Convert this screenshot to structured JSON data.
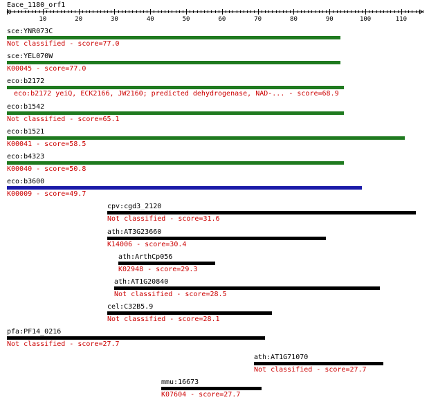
{
  "query": {
    "name": "Eace_1180_orf1",
    "axis_min": 0,
    "axis_max": 116,
    "tick_labels": [
      "10",
      "20",
      "30",
      "40",
      "50",
      "60",
      "70",
      "80",
      "90",
      "100",
      "110"
    ]
  },
  "colors": {
    "green": "#1f7a1f",
    "blue": "#1a1aa8",
    "black": "#000000",
    "red": "#cc0000"
  },
  "hits": [
    {
      "name": "sce:YNR073C",
      "start": 0,
      "end": 93,
      "color": "green",
      "sub": "Not classified - score=77.0",
      "sub_color": "red"
    },
    {
      "name": "sce:YEL070W",
      "start": 0,
      "end": 93,
      "color": "green",
      "sub": "K00045 - score=77.0",
      "sub_color": "red"
    },
    {
      "name": "eco:b2172",
      "start": 0,
      "end": 94,
      "color": "green",
      "sub": "eco:b2172  yeiQ, ECK2166, JW2160; predicted dehydrogenase, NAD-... - score=68.9",
      "sub_color": "red",
      "sub_indent": true
    },
    {
      "name": "eco:b1542",
      "start": 0,
      "end": 94,
      "color": "green",
      "sub": "Not classified - score=65.1",
      "sub_color": "red"
    },
    {
      "name": "eco:b1521",
      "start": 0,
      "end": 111,
      "color": "green",
      "sub": "K00041 - score=58.5",
      "sub_color": "red"
    },
    {
      "name": "eco:b4323",
      "start": 0,
      "end": 94,
      "color": "green",
      "sub": "K00040 - score=50.8",
      "sub_color": "red"
    },
    {
      "name": "eco:b3600",
      "start": 0,
      "end": 99,
      "color": "blue",
      "sub": "K00009 - score=49.7",
      "sub_color": "red"
    },
    {
      "name": "cpv:cgd3_2120",
      "start": 28,
      "end": 114,
      "color": "black",
      "sub": "Not classified - score=31.6",
      "sub_color": "red"
    },
    {
      "name": "ath:AT3G23660",
      "start": 28,
      "end": 89,
      "color": "black",
      "sub": "K14006 - score=30.4",
      "sub_color": "red"
    },
    {
      "name": "ath:ArthCp056",
      "start": 31,
      "end": 58,
      "color": "black",
      "sub": "K02948 - score=29.3",
      "sub_color": "red"
    },
    {
      "name": "ath:AT1G20840",
      "start": 30,
      "end": 104,
      "color": "black",
      "sub": "Not classified - score=28.5",
      "sub_color": "red"
    },
    {
      "name": "cel:C32B5.9",
      "start": 28,
      "end": 74,
      "color": "black",
      "sub": "Not classified - score=28.1",
      "sub_color": "red"
    },
    {
      "name": "pfa:PF14_0216",
      "start": 0,
      "end": 72,
      "color": "black",
      "sub": "Not classified - score=27.7",
      "sub_color": "red"
    },
    {
      "name": "ath:AT1G71070",
      "start": 69,
      "end": 105,
      "color": "black",
      "sub": "Not classified - score=27.7",
      "sub_color": "red"
    },
    {
      "name": "mmu:16673",
      "start": 43,
      "end": 71,
      "color": "black",
      "sub": "K07604 - score=27.7",
      "sub_color": "red"
    }
  ]
}
